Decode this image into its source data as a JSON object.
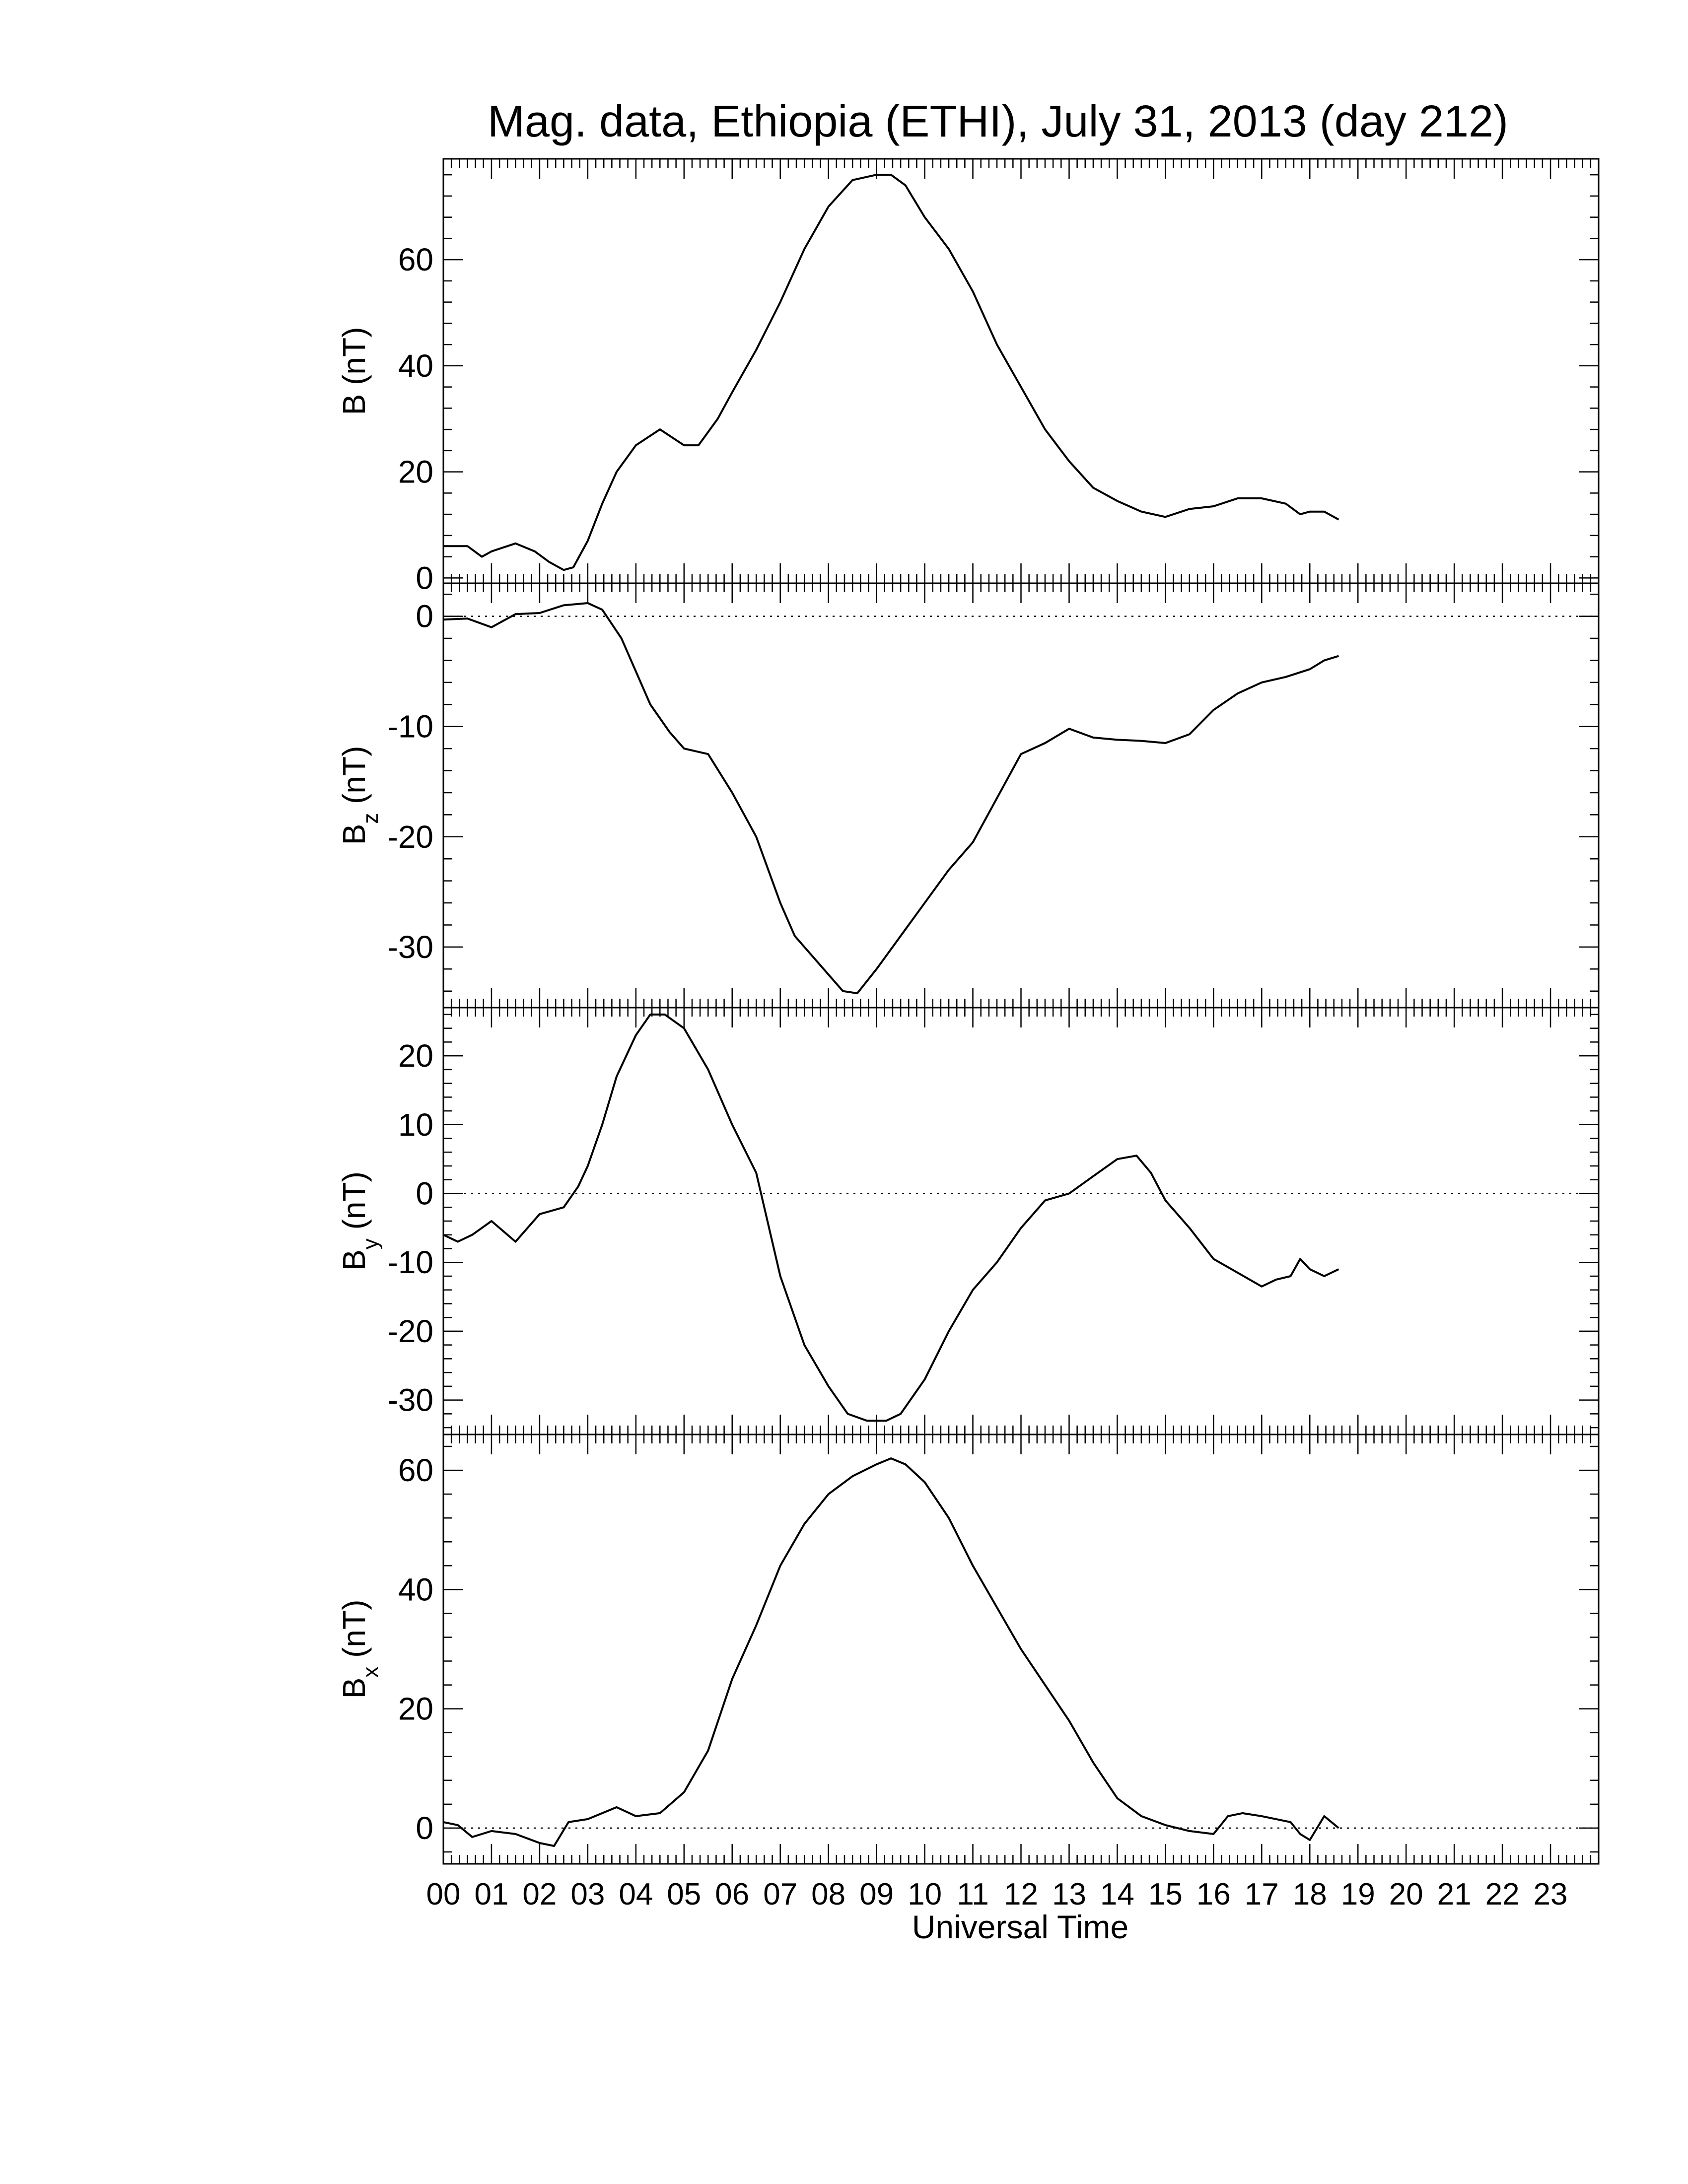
{
  "title": "Mag. data, Ethiopia (ETHI), July 31, 2013 (day 212)",
  "xlabel": "Universal Time",
  "x_tick_labels": [
    "00",
    "01",
    "02",
    "03",
    "04",
    "05",
    "06",
    "07",
    "08",
    "09",
    "10",
    "11",
    "12",
    "13",
    "14",
    "15",
    "16",
    "17",
    "18",
    "19",
    "20",
    "21",
    "22",
    "23"
  ],
  "chart_data": [
    {
      "type": "line",
      "name": "B",
      "ylabel": "B (nT)",
      "ylabel_main": "B",
      "ylabel_sub": "",
      "ylim": [
        -1,
        79
      ],
      "yticks": [
        0,
        20,
        40,
        60
      ],
      "zero_line": false,
      "xlim": [
        0,
        24
      ],
      "x": [
        0,
        0.5,
        0.8,
        1.0,
        1.5,
        1.9,
        2.2,
        2.5,
        2.7,
        3.0,
        3.3,
        3.6,
        4.0,
        4.5,
        5.0,
        5.3,
        5.7,
        6.0,
        6.5,
        7.0,
        7.5,
        8.0,
        8.5,
        9.0,
        9.3,
        9.6,
        10.0,
        10.5,
        11.0,
        11.5,
        12.0,
        12.5,
        13.0,
        13.5,
        14.0,
        14.5,
        15.0,
        15.5,
        16.0,
        16.5,
        17.0,
        17.5,
        17.8,
        18.0,
        18.3,
        18.6
      ],
      "y": [
        6,
        6,
        4,
        5,
        6.5,
        5,
        3,
        1.5,
        2,
        7,
        14,
        20,
        25,
        28,
        25,
        25,
        30,
        35,
        43,
        52,
        62,
        70,
        75,
        76,
        76,
        74,
        68,
        62,
        54,
        44,
        36,
        28,
        22,
        17,
        14.5,
        12.5,
        11.5,
        13,
        13.5,
        15,
        15,
        14,
        12,
        12.5,
        12.5,
        11
      ]
    },
    {
      "type": "line",
      "name": "Bz",
      "ylabel": "Bz (nT)",
      "ylabel_main": "B",
      "ylabel_sub": "z",
      "ylim": [
        -35.5,
        3
      ],
      "yticks": [
        0,
        -10,
        -20,
        -30
      ],
      "zero_line": true,
      "xlim": [
        0,
        24
      ],
      "x": [
        0,
        0.5,
        1.0,
        1.5,
        2.0,
        2.5,
        3.0,
        3.3,
        3.7,
        4.0,
        4.3,
        4.7,
        5.0,
        5.5,
        6.0,
        6.5,
        7.0,
        7.3,
        7.7,
        8.0,
        8.3,
        8.6,
        9.0,
        9.5,
        10.0,
        10.5,
        11.0,
        11.5,
        12.0,
        12.5,
        13.0,
        13.5,
        14.0,
        14.5,
        15.0,
        15.5,
        16.0,
        16.5,
        17.0,
        17.5,
        18.0,
        18.3,
        18.6
      ],
      "y": [
        -0.3,
        -0.2,
        -1.0,
        0.2,
        0.3,
        1.0,
        1.2,
        0.6,
        -2.0,
        -5.0,
        -8.0,
        -10.5,
        -12.0,
        -12.5,
        -16.0,
        -20.0,
        -26.0,
        -29.0,
        -31.0,
        -32.5,
        -34.0,
        -34.2,
        -32.0,
        -29.0,
        -26.0,
        -23.0,
        -20.5,
        -16.5,
        -12.5,
        -11.5,
        -10.2,
        -11.0,
        -11.2,
        -11.3,
        -11.5,
        -10.7,
        -8.5,
        -7.0,
        -6.0,
        -5.5,
        -4.8,
        -4.0,
        -3.6
      ]
    },
    {
      "type": "line",
      "name": "By",
      "ylabel": "By (nT)",
      "ylabel_main": "B",
      "ylabel_sub": "y",
      "ylim": [
        -35,
        27
      ],
      "yticks": [
        20,
        10,
        0,
        -10,
        -20,
        -30
      ],
      "zero_line": true,
      "xlim": [
        0,
        24
      ],
      "x": [
        0,
        0.3,
        0.6,
        1.0,
        1.5,
        2.0,
        2.5,
        2.8,
        3.0,
        3.3,
        3.6,
        4.0,
        4.3,
        4.6,
        5.0,
        5.5,
        6.0,
        6.5,
        7.0,
        7.5,
        8.0,
        8.4,
        8.8,
        9.2,
        9.5,
        10.0,
        10.5,
        11.0,
        11.5,
        12.0,
        12.5,
        13.0,
        13.5,
        14.0,
        14.4,
        14.7,
        15.0,
        15.5,
        16.0,
        16.5,
        17.0,
        17.3,
        17.6,
        17.8,
        18.0,
        18.3,
        18.6
      ],
      "y": [
        -6,
        -7,
        -6,
        -4,
        -7,
        -3,
        -2,
        1,
        4,
        10,
        17,
        23,
        26,
        26,
        24,
        18,
        10,
        3,
        -12,
        -22,
        -28,
        -32,
        -33,
        -33,
        -32,
        -27,
        -20,
        -14,
        -10,
        -5,
        -1,
        0,
        2.5,
        5,
        5.5,
        3,
        -1,
        -5,
        -9.5,
        -11.5,
        -13.5,
        -12.5,
        -12,
        -9.5,
        -11,
        -12,
        -11
      ]
    },
    {
      "type": "line",
      "name": "Bx",
      "ylabel": "Bx (nT)",
      "ylabel_main": "B",
      "ylabel_sub": "x",
      "ylim": [
        -6,
        66
      ],
      "yticks": [
        0,
        20,
        40,
        60
      ],
      "zero_line": true,
      "xlim": [
        0,
        24
      ],
      "x": [
        0,
        0.3,
        0.6,
        1.0,
        1.5,
        2.0,
        2.3,
        2.6,
        3.0,
        3.3,
        3.6,
        4.0,
        4.5,
        5.0,
        5.5,
        6.0,
        6.5,
        7.0,
        7.5,
        8.0,
        8.5,
        9.0,
        9.3,
        9.6,
        10.0,
        10.5,
        11.0,
        11.5,
        12.0,
        12.5,
        13.0,
        13.5,
        14.0,
        14.5,
        15.0,
        15.5,
        16.0,
        16.3,
        16.6,
        17.0,
        17.3,
        17.6,
        17.8,
        18.0,
        18.3,
        18.6
      ],
      "y": [
        1,
        0.5,
        -1.5,
        -0.5,
        -1,
        -2.5,
        -3,
        1,
        1.5,
        2.5,
        3.5,
        2,
        2.5,
        6,
        13,
        25,
        34,
        44,
        51,
        56,
        59,
        61,
        62,
        61,
        58,
        52,
        44,
        37,
        30,
        24,
        18,
        11,
        5,
        2,
        0.5,
        -0.5,
        -1,
        2,
        2.5,
        2,
        1.5,
        1,
        -1,
        -2,
        2,
        0
      ]
    }
  ]
}
